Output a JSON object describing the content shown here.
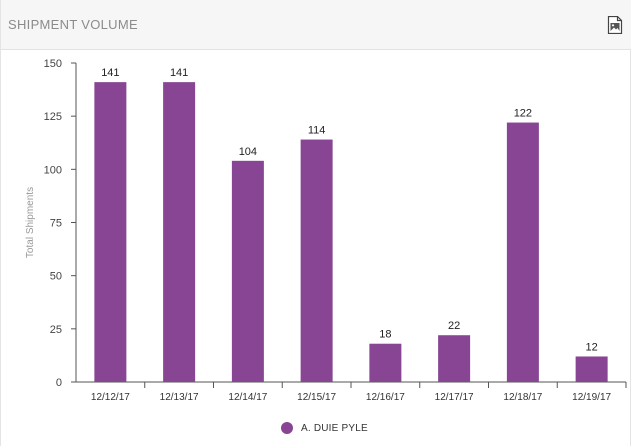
{
  "header": {
    "title": "SHIPMENT VOLUME",
    "export_icon": "image-export-icon"
  },
  "colors": {
    "bar": "#874594",
    "axis": "#333333",
    "header_bg": "#f6f6f7"
  },
  "chart_data": {
    "type": "bar",
    "title": "",
    "xlabel": "",
    "ylabel": "Total Shipments",
    "categories": [
      "12/12/17",
      "12/13/17",
      "12/14/17",
      "12/15/17",
      "12/16/17",
      "12/17/17",
      "12/18/17",
      "12/19/17"
    ],
    "series": [
      {
        "name": "A. DUIE PYLE",
        "values": [
          141,
          141,
          104,
          114,
          18,
          22,
          122,
          12
        ]
      }
    ],
    "ylim": [
      0,
      150
    ],
    "yticks": [
      0,
      25,
      50,
      75,
      100,
      125,
      150
    ],
    "data_labels": true,
    "grid": false,
    "legend": "bottom-center"
  },
  "legend": {
    "label": "A. DUIE PYLE"
  }
}
